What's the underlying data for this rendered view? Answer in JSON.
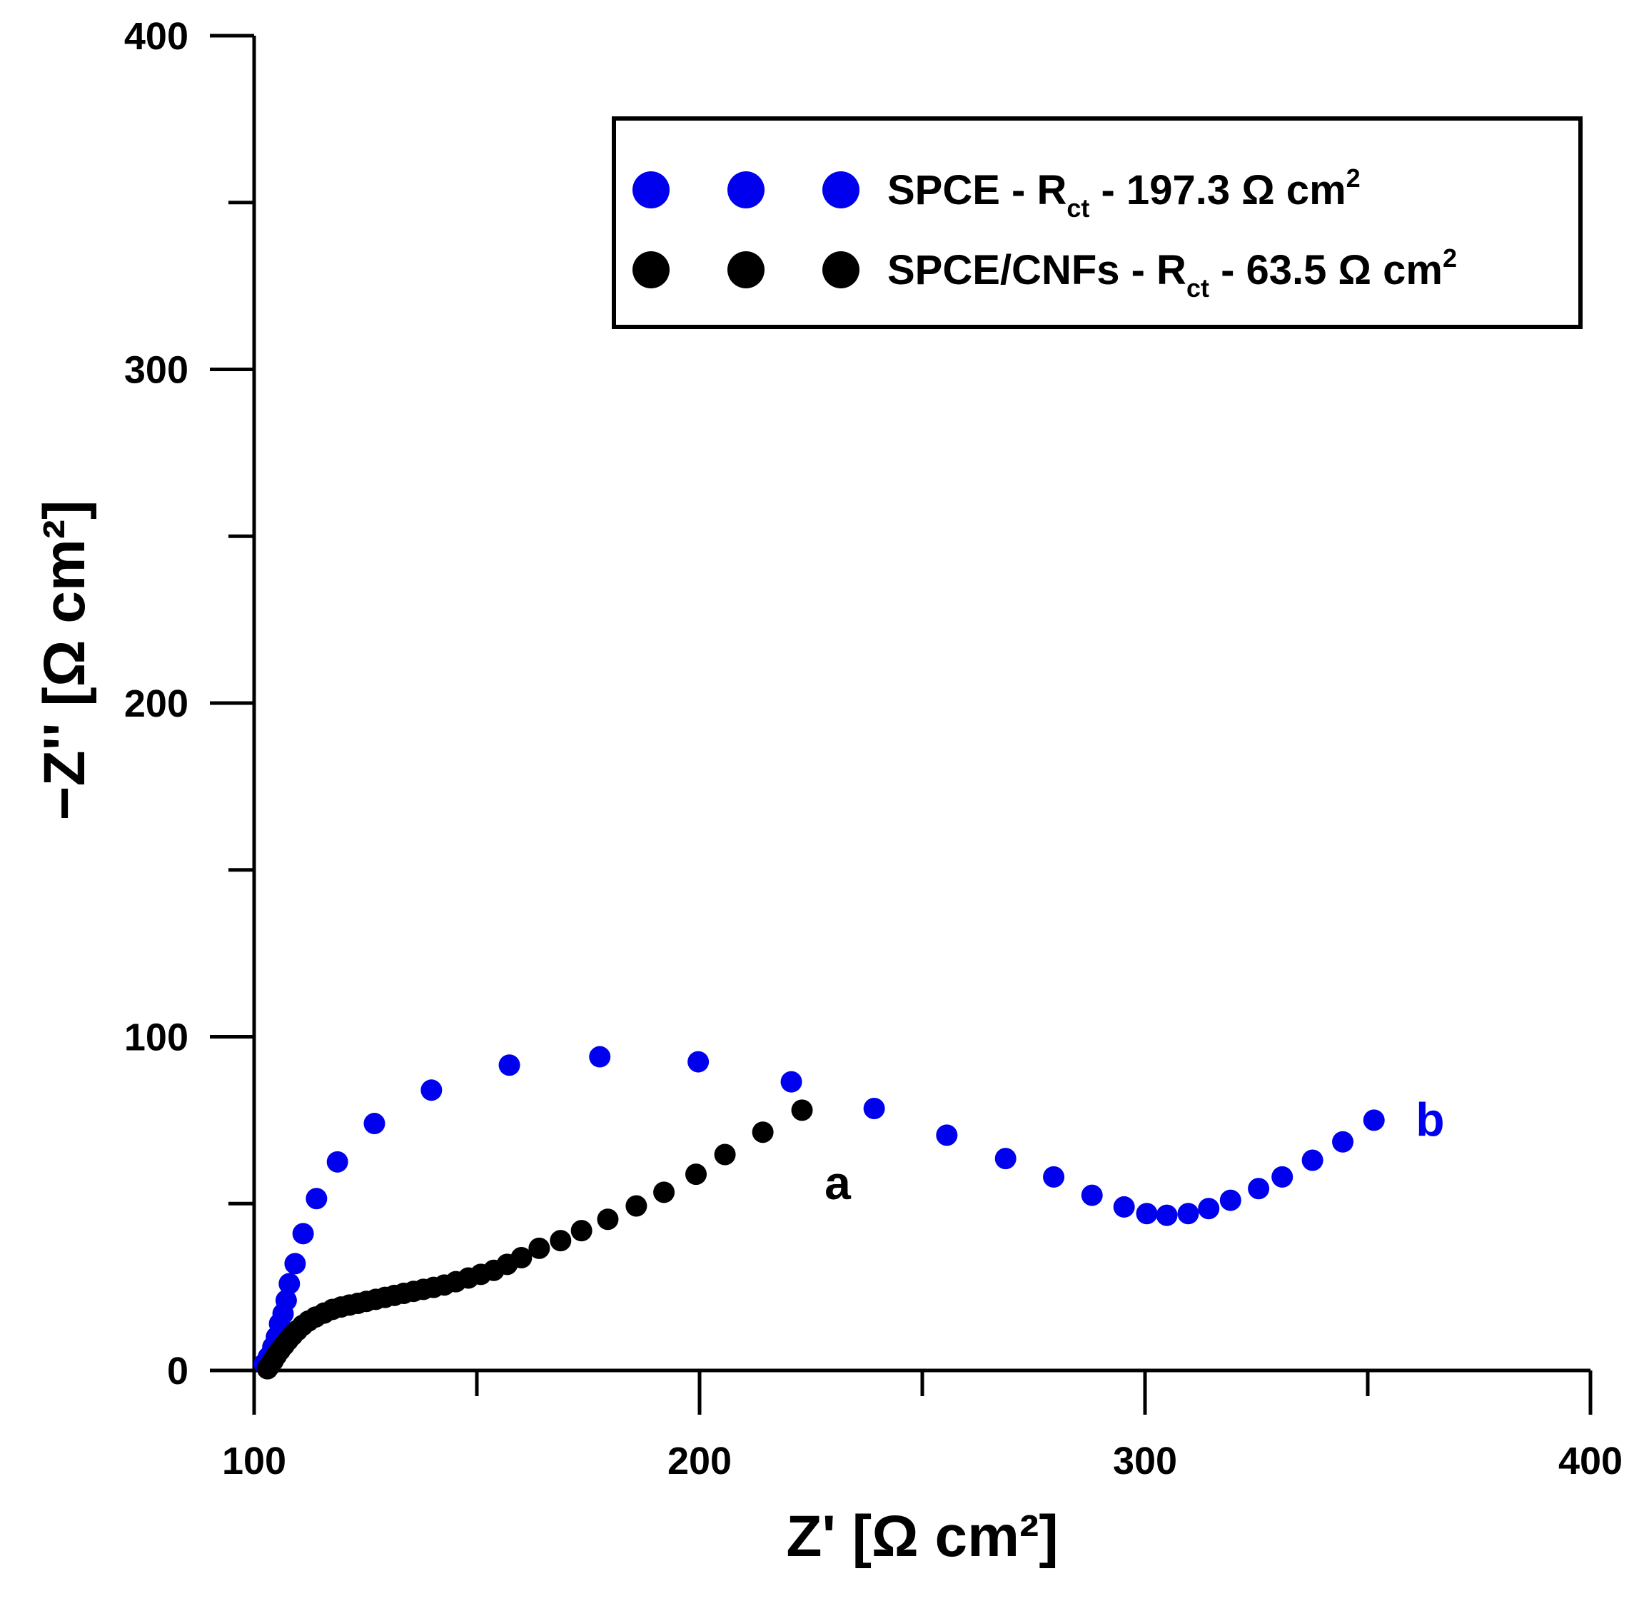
{
  "chart_data": {
    "type": "scatter",
    "xlabel": "Z' [Ω cm²]",
    "ylabel": "−Z'' [Ω cm²]",
    "xlim": [
      100,
      400
    ],
    "ylim": [
      0,
      400
    ],
    "x_ticks": [
      100,
      200,
      300,
      400
    ],
    "y_ticks": [
      0,
      100,
      200,
      300,
      400
    ],
    "x_minor_ticks": [
      150,
      250,
      350
    ],
    "y_minor_ticks": [
      50,
      150,
      250,
      350
    ],
    "grid": false,
    "legend_position": "top-right",
    "legend": [
      {
        "series": "SPCE",
        "prefix": "SPCE - R",
        "sub": "ct",
        "suffix": " - 197.3 Ω cm",
        "sup": "2",
        "color": "#0000ee"
      },
      {
        "series": "SPCE/CNFs",
        "prefix": "SPCE/CNFs - R",
        "sub": "ct",
        "suffix": " - 63.5 Ω cm",
        "sup": "2",
        "color": "#000000"
      }
    ],
    "annotations": [
      {
        "text": "a",
        "x": 231,
        "y": 56,
        "color": "#000000"
      },
      {
        "text": "b",
        "x": 364,
        "y": 75,
        "color": "#0000ee"
      }
    ],
    "series": [
      {
        "name": "SPCE",
        "color": "#0000ee",
        "x": [
          102.3,
          103.2,
          104.2,
          105.0,
          105.7,
          106.5,
          107.2,
          107.9,
          109.2,
          111.0,
          114.0,
          118.7,
          127.0,
          139.8,
          157.3,
          177.6,
          199.7,
          220.6,
          239.2,
          255.5,
          268.7,
          279.5,
          288.1,
          295.3,
          300.4,
          304.9,
          309.7,
          314.3,
          319.2,
          325.5,
          330.8,
          337.6,
          344.4,
          351.4
        ],
        "y": [
          2.0,
          4.0,
          7.0,
          10.0,
          14.0,
          17.0,
          21.0,
          26.0,
          32.0,
          41.0,
          51.5,
          62.5,
          74.0,
          84.0,
          91.5,
          94.0,
          92.5,
          86.5,
          78.5,
          70.5,
          63.5,
          58.0,
          52.5,
          49.0,
          47.0,
          46.5,
          47.0,
          48.5,
          51.0,
          54.5,
          58.0,
          63.0,
          68.5,
          75.0
        ]
      },
      {
        "name": "SPCE/CNFs",
        "color": "#000000",
        "x": [
          103.0,
          103.6,
          104.3,
          105.0,
          105.8,
          106.7,
          107.6,
          108.6,
          109.7,
          110.9,
          112.2,
          113.8,
          115.7,
          117.6,
          119.5,
          121.4,
          123.3,
          125.2,
          127.3,
          129.4,
          131.5,
          133.6,
          135.8,
          138.0,
          140.3,
          142.7,
          145.3,
          148.1,
          150.9,
          153.8,
          156.8,
          160.0,
          164.0,
          168.8,
          173.5,
          179.4,
          185.8,
          192.0,
          199.2,
          205.7,
          214.2,
          223.0
        ],
        "y": [
          0.5,
          1.5,
          3.0,
          4.5,
          6.0,
          7.5,
          9.0,
          10.5,
          12.0,
          13.5,
          14.8,
          16.0,
          17.2,
          18.3,
          19.0,
          19.6,
          20.1,
          20.7,
          21.3,
          21.9,
          22.5,
          23.1,
          23.7,
          24.3,
          24.9,
          25.6,
          26.6,
          27.7,
          28.8,
          30.0,
          31.8,
          33.8,
          36.6,
          38.9,
          41.9,
          45.3,
          49.3,
          53.4,
          58.8,
          64.7,
          71.4,
          78.0
        ]
      }
    ]
  }
}
